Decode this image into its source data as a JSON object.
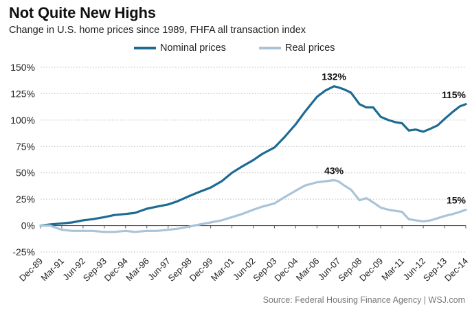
{
  "title": "Not Quite New Highs",
  "subtitle": "Change in U.S. home prices since 1989, FHFA all transaction index",
  "source": "Source: Federal Housing Finance Agency  |  WSJ.com",
  "colors": {
    "nominal": "#1d6a93",
    "real": "#a9c3d8",
    "grid": "#bdbdbd",
    "zero": "#555555"
  },
  "chart_data": {
    "type": "line",
    "ylim": [
      -25,
      150
    ],
    "yticks": [
      150,
      125,
      100,
      75,
      50,
      25,
      0,
      -25
    ],
    "ytick_labels": [
      "150%",
      "125%",
      "100%",
      "75%",
      "50%",
      "25%",
      "0%",
      "-25%"
    ],
    "xlim": [
      1989.95,
      2014.95
    ],
    "xticks": [
      {
        "label": "Dec-89",
        "x": 1989.95
      },
      {
        "label": "Mar-91",
        "x": 1991.2
      },
      {
        "label": "Jun-92",
        "x": 1992.45
      },
      {
        "label": "Sep-93",
        "x": 1993.7
      },
      {
        "label": "Dec-94",
        "x": 1994.95
      },
      {
        "label": "Mar-96",
        "x": 1996.2
      },
      {
        "label": "Jun-97",
        "x": 1997.45
      },
      {
        "label": "Sep-98",
        "x": 1998.7
      },
      {
        "label": "Dec-99",
        "x": 1999.95
      },
      {
        "label": "Mar-01",
        "x": 2001.2
      },
      {
        "label": "Jun-02",
        "x": 2002.45
      },
      {
        "label": "Sep-03",
        "x": 2003.7
      },
      {
        "label": "Dec-04",
        "x": 2004.95
      },
      {
        "label": "Mar-06",
        "x": 2006.2
      },
      {
        "label": "Jun-07",
        "x": 2007.45
      },
      {
        "label": "Sep-08",
        "x": 2008.7
      },
      {
        "label": "Dec-09",
        "x": 2009.95
      },
      {
        "label": "Mar-11",
        "x": 2011.2
      },
      {
        "label": "Jun-12",
        "x": 2012.45
      },
      {
        "label": "Sep-13",
        "x": 2013.7
      },
      {
        "label": "Dec-14",
        "x": 2014.95
      }
    ],
    "series": [
      {
        "name": "Nominal prices",
        "points": [
          [
            1989.95,
            0
          ],
          [
            1990.5,
            1
          ],
          [
            1991.2,
            2
          ],
          [
            1991.8,
            3
          ],
          [
            1992.45,
            5
          ],
          [
            1993.0,
            6
          ],
          [
            1993.7,
            8
          ],
          [
            1994.3,
            10
          ],
          [
            1994.95,
            11
          ],
          [
            1995.5,
            12
          ],
          [
            1996.2,
            16
          ],
          [
            1996.8,
            18
          ],
          [
            1997.45,
            20
          ],
          [
            1998.0,
            23
          ],
          [
            1998.7,
            28
          ],
          [
            1999.3,
            32
          ],
          [
            1999.95,
            36
          ],
          [
            2000.6,
            42
          ],
          [
            2001.2,
            50
          ],
          [
            2001.8,
            56
          ],
          [
            2002.45,
            62
          ],
          [
            2003.0,
            68
          ],
          [
            2003.7,
            74
          ],
          [
            2004.3,
            84
          ],
          [
            2004.95,
            96
          ],
          [
            2005.5,
            108
          ],
          [
            2006.2,
            122
          ],
          [
            2006.7,
            128
          ],
          [
            2007.2,
            132
          ],
          [
            2007.45,
            131
          ],
          [
            2007.8,
            129
          ],
          [
            2008.2,
            126
          ],
          [
            2008.7,
            115
          ],
          [
            2009.1,
            112
          ],
          [
            2009.5,
            112
          ],
          [
            2009.95,
            103
          ],
          [
            2010.4,
            100
          ],
          [
            2010.8,
            98
          ],
          [
            2011.2,
            97
          ],
          [
            2011.6,
            90
          ],
          [
            2012.0,
            91
          ],
          [
            2012.45,
            89
          ],
          [
            2012.9,
            92
          ],
          [
            2013.3,
            95
          ],
          [
            2013.7,
            101
          ],
          [
            2014.2,
            108
          ],
          [
            2014.6,
            113
          ],
          [
            2014.95,
            115
          ]
        ]
      },
      {
        "name": "Real prices",
        "points": [
          [
            1989.95,
            0
          ],
          [
            1990.5,
            0
          ],
          [
            1991.2,
            -4
          ],
          [
            1991.8,
            -5
          ],
          [
            1992.45,
            -5
          ],
          [
            1993.0,
            -5
          ],
          [
            1993.7,
            -6
          ],
          [
            1994.3,
            -6
          ],
          [
            1994.95,
            -5
          ],
          [
            1995.5,
            -6
          ],
          [
            1996.2,
            -5
          ],
          [
            1996.8,
            -5
          ],
          [
            1997.45,
            -4
          ],
          [
            1998.0,
            -3
          ],
          [
            1998.7,
            -1
          ],
          [
            1999.3,
            1
          ],
          [
            1999.95,
            3
          ],
          [
            2000.6,
            5
          ],
          [
            2001.2,
            8
          ],
          [
            2001.8,
            11
          ],
          [
            2002.45,
            15
          ],
          [
            2003.0,
            18
          ],
          [
            2003.7,
            21
          ],
          [
            2004.3,
            27
          ],
          [
            2004.95,
            33
          ],
          [
            2005.5,
            38
          ],
          [
            2006.2,
            41
          ],
          [
            2006.7,
            42
          ],
          [
            2007.2,
            43
          ],
          [
            2007.45,
            42
          ],
          [
            2007.8,
            38
          ],
          [
            2008.2,
            34
          ],
          [
            2008.7,
            24
          ],
          [
            2009.1,
            26
          ],
          [
            2009.5,
            22
          ],
          [
            2009.95,
            17
          ],
          [
            2010.4,
            15
          ],
          [
            2010.8,
            14
          ],
          [
            2011.2,
            13
          ],
          [
            2011.6,
            6
          ],
          [
            2012.0,
            5
          ],
          [
            2012.45,
            4
          ],
          [
            2012.9,
            5
          ],
          [
            2013.3,
            7
          ],
          [
            2013.7,
            9
          ],
          [
            2014.2,
            11
          ],
          [
            2014.6,
            13
          ],
          [
            2014.95,
            15
          ]
        ]
      }
    ],
    "annotations": [
      {
        "text": "132%",
        "series": 0,
        "x": 2007.2,
        "y": 132
      },
      {
        "text": "115%",
        "series": 0,
        "x": 2014.95,
        "y": 115
      },
      {
        "text": "43%",
        "series": 1,
        "x": 2007.2,
        "y": 43
      },
      {
        "text": "15%",
        "series": 1,
        "x": 2014.95,
        "y": 15
      }
    ],
    "grid": true,
    "legend": "top-center"
  }
}
